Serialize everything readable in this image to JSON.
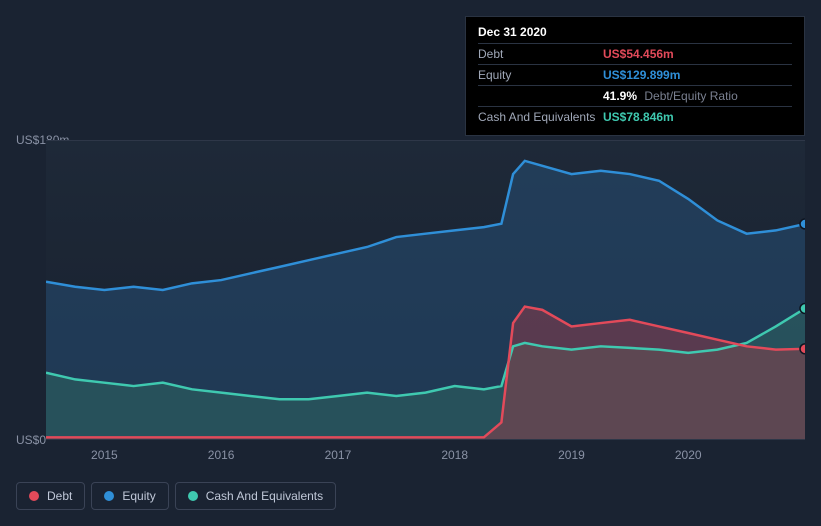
{
  "tooltip": {
    "title": "Dec 31 2020",
    "rows": [
      {
        "label": "Debt",
        "value": "US$54.456m",
        "color": "#e24a5a"
      },
      {
        "label": "Equity",
        "value": "US$129.899m",
        "color": "#2f8fd8"
      },
      {
        "label": "",
        "ratio_value": "41.9%",
        "ratio_label": "Debt/Equity Ratio"
      },
      {
        "label": "Cash And Equivalents",
        "value": "US$78.846m",
        "color": "#3fc9b0"
      }
    ]
  },
  "y_axis": {
    "max_label": "US$180m",
    "min_label": "US$0",
    "max": 180,
    "min": 0
  },
  "x_axis": {
    "labels": [
      "2015",
      "2016",
      "2017",
      "2018",
      "2019",
      "2020"
    ],
    "domain_start": 2014.5,
    "domain_end": 2021.0
  },
  "series": {
    "debt": {
      "label": "Debt",
      "color": "#e24a5a",
      "fill": "rgba(159,60,70,0.45)",
      "data": [
        [
          2014.5,
          1
        ],
        [
          2015,
          1
        ],
        [
          2015.5,
          1
        ],
        [
          2016,
          1
        ],
        [
          2016.5,
          1
        ],
        [
          2017,
          1
        ],
        [
          2017.5,
          1
        ],
        [
          2018,
          1
        ],
        [
          2018.25,
          1
        ],
        [
          2018.4,
          10
        ],
        [
          2018.5,
          70
        ],
        [
          2018.6,
          80
        ],
        [
          2018.75,
          78
        ],
        [
          2019,
          68
        ],
        [
          2019.25,
          70
        ],
        [
          2019.5,
          72
        ],
        [
          2019.75,
          68
        ],
        [
          2020,
          64
        ],
        [
          2020.25,
          60
        ],
        [
          2020.5,
          56
        ],
        [
          2020.75,
          54
        ],
        [
          2021,
          54.456
        ]
      ]
    },
    "equity": {
      "label": "Equity",
      "color": "#2f8fd8",
      "fill": "rgba(38,78,116,0.55)",
      "data": [
        [
          2014.5,
          95
        ],
        [
          2014.75,
          92
        ],
        [
          2015,
          90
        ],
        [
          2015.25,
          92
        ],
        [
          2015.5,
          90
        ],
        [
          2015.75,
          94
        ],
        [
          2016,
          96
        ],
        [
          2016.25,
          100
        ],
        [
          2016.5,
          104
        ],
        [
          2016.75,
          108
        ],
        [
          2017,
          112
        ],
        [
          2017.25,
          116
        ],
        [
          2017.5,
          122
        ],
        [
          2017.75,
          124
        ],
        [
          2018,
          126
        ],
        [
          2018.25,
          128
        ],
        [
          2018.4,
          130
        ],
        [
          2018.5,
          160
        ],
        [
          2018.6,
          168
        ],
        [
          2018.75,
          165
        ],
        [
          2019,
          160
        ],
        [
          2019.25,
          162
        ],
        [
          2019.5,
          160
        ],
        [
          2019.75,
          156
        ],
        [
          2020,
          145
        ],
        [
          2020.25,
          132
        ],
        [
          2020.5,
          124
        ],
        [
          2020.75,
          126
        ],
        [
          2021,
          129.899
        ]
      ]
    },
    "cash": {
      "label": "Cash And Equivalents",
      "color": "#3fc9b0",
      "fill": "rgba(48,110,100,0.45)",
      "data": [
        [
          2014.5,
          40
        ],
        [
          2014.75,
          36
        ],
        [
          2015,
          34
        ],
        [
          2015.25,
          32
        ],
        [
          2015.5,
          34
        ],
        [
          2015.75,
          30
        ],
        [
          2016,
          28
        ],
        [
          2016.25,
          26
        ],
        [
          2016.5,
          24
        ],
        [
          2016.75,
          24
        ],
        [
          2017,
          26
        ],
        [
          2017.25,
          28
        ],
        [
          2017.5,
          26
        ],
        [
          2017.75,
          28
        ],
        [
          2018,
          32
        ],
        [
          2018.25,
          30
        ],
        [
          2018.4,
          32
        ],
        [
          2018.5,
          56
        ],
        [
          2018.6,
          58
        ],
        [
          2018.75,
          56
        ],
        [
          2019,
          54
        ],
        [
          2019.25,
          56
        ],
        [
          2019.5,
          55
        ],
        [
          2019.75,
          54
        ],
        [
          2020,
          52
        ],
        [
          2020.25,
          54
        ],
        [
          2020.5,
          58
        ],
        [
          2020.75,
          68
        ],
        [
          2021,
          78.846
        ]
      ]
    }
  },
  "legend": [
    {
      "key": "debt",
      "label": "Debt",
      "color": "#e24a5a"
    },
    {
      "key": "equity",
      "label": "Equity",
      "color": "#2f8fd8"
    },
    {
      "key": "cash",
      "label": "Cash And Equivalents",
      "color": "#3fc9b0"
    }
  ],
  "colors": {
    "background": "#1a2332",
    "plot_bg_top": "#1e2938",
    "plot_bg_bottom": "#18202e",
    "grid": "#2e3748",
    "text_muted": "#8a92a5"
  }
}
